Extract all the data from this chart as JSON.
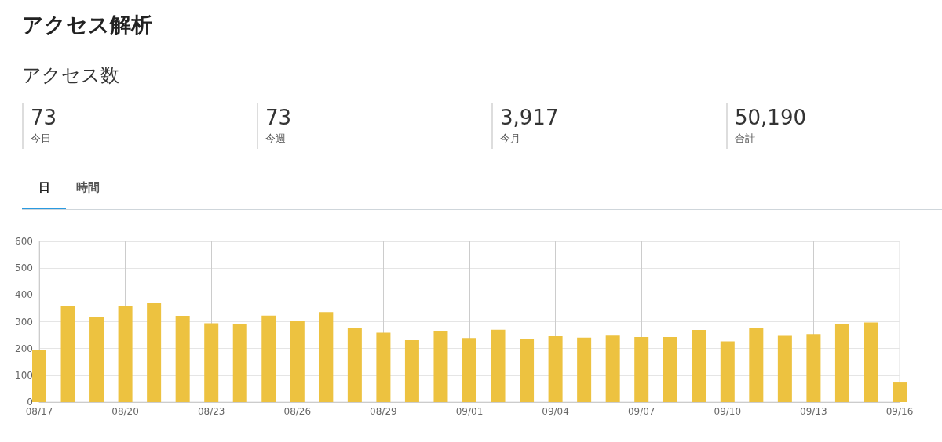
{
  "chart_data": {
    "type": "bar",
    "title": "アクセス解析",
    "subtitle": "アクセス数",
    "annotations": [
      "73",
      "今日",
      "73",
      "今週",
      "3,917",
      "今月",
      "50,190",
      "合計",
      "日",
      "時間"
    ],
    "categories": [
      "08/17",
      null,
      null,
      "08/20",
      null,
      null,
      "08/23",
      null,
      null,
      "08/26",
      null,
      null,
      "08/29",
      null,
      null,
      "09/01",
      null,
      null,
      "09/04",
      null,
      null,
      "09/07",
      null,
      null,
      "09/10",
      null,
      null,
      "09/13",
      null,
      null,
      "09/16"
    ],
    "values": [
      194,
      359,
      316,
      357,
      372,
      322,
      294,
      292,
      323,
      303,
      336,
      275,
      259,
      231,
      266,
      239,
      270,
      236,
      246,
      241,
      248,
      243,
      243,
      269,
      227,
      277,
      247,
      254,
      291,
      297,
      73
    ],
    "color": "#edc240",
    "ylim": [
      0,
      600
    ],
    "yticks": [
      0,
      100,
      200,
      300,
      400,
      500,
      600
    ],
    "grid": true
  }
}
